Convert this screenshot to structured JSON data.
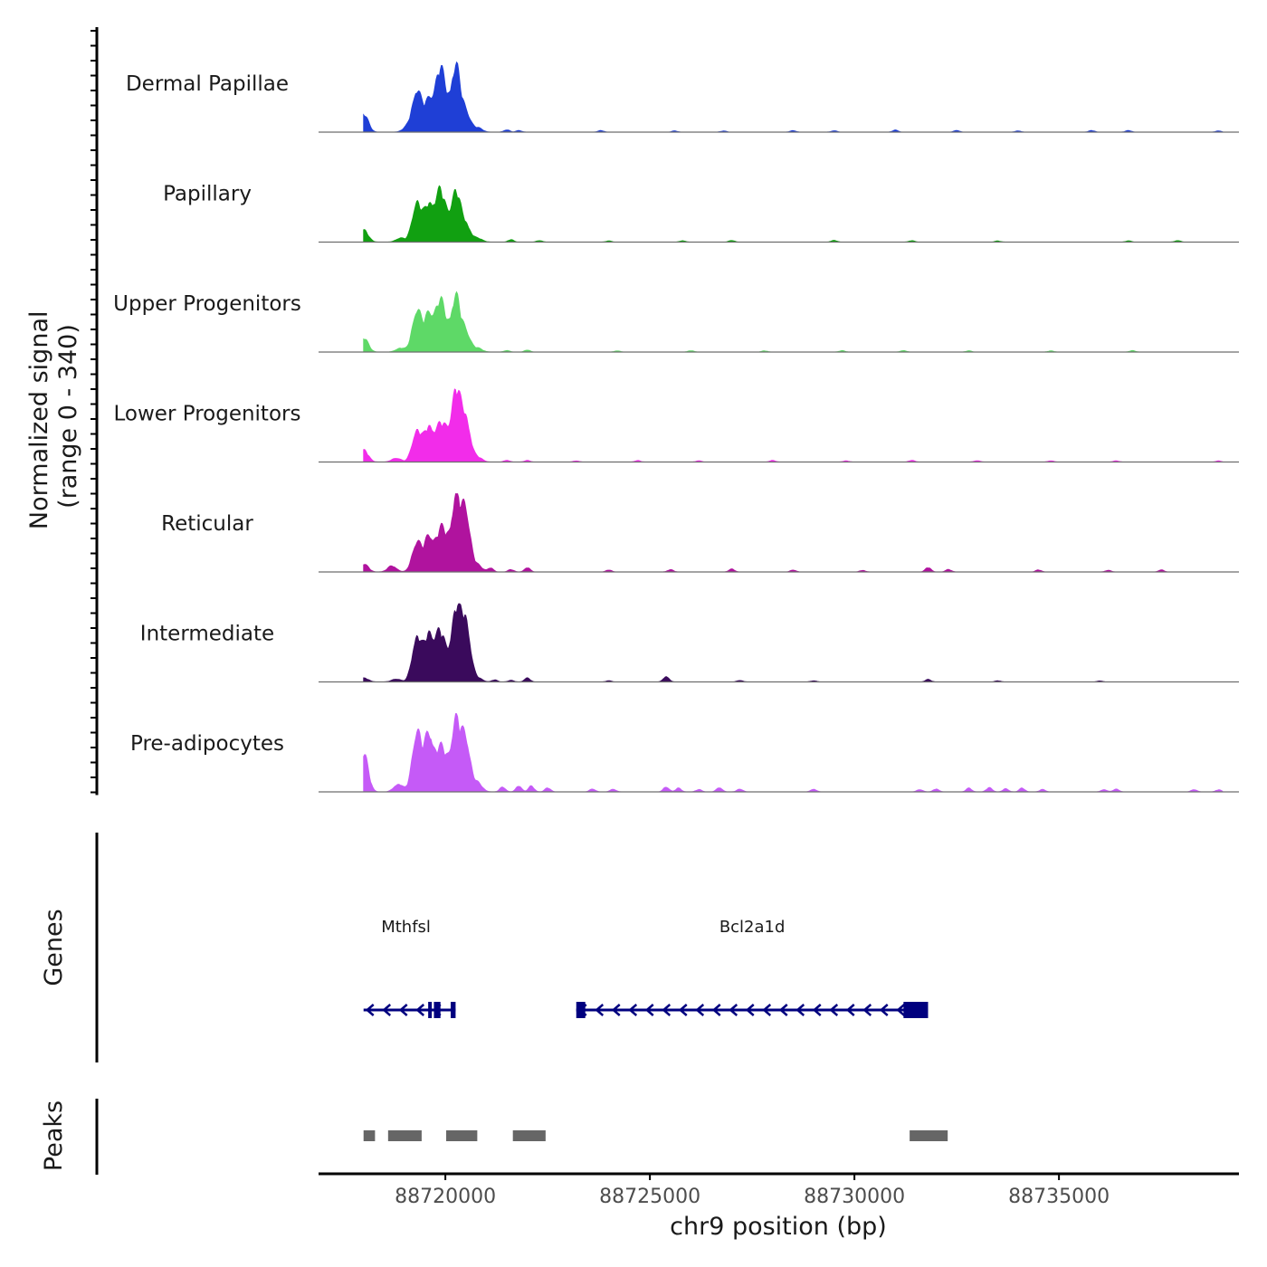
{
  "chart_data": {
    "type": "area",
    "title": "",
    "ylabel_line1": "Normalized signal",
    "ylabel_line2": "(range 0 - 340)",
    "yrange": [
      0,
      340
    ],
    "xlabel": "chr9 position (bp)",
    "xlim": [
      88716900,
      88739400
    ],
    "xticks": [
      88720000,
      88725000,
      88730000,
      88735000
    ],
    "xtick_labels": [
      "88720000",
      "88725000",
      "88730000",
      "88735000"
    ],
    "tracks": [
      {
        "name": "Dermal Papillae",
        "color": "#1f3fd6",
        "peaks": [
          [
            88718000,
            90
          ],
          [
            88719050,
            20
          ],
          [
            88719300,
            210
          ],
          [
            88719600,
            150
          ],
          [
            88719850,
            250
          ],
          [
            88720000,
            110
          ],
          [
            88720250,
            310
          ],
          [
            88720500,
            100
          ],
          [
            88720800,
            20
          ]
        ],
        "noise": [
          [
            88721500,
            12
          ],
          [
            88721800,
            8
          ],
          [
            88723800,
            8
          ],
          [
            88725600,
            6
          ],
          [
            88726800,
            6
          ],
          [
            88728500,
            8
          ],
          [
            88729500,
            7
          ],
          [
            88731000,
            10
          ],
          [
            88732500,
            9
          ],
          [
            88734000,
            6
          ],
          [
            88735800,
            8
          ],
          [
            88736700,
            8
          ],
          [
            88738900,
            6
          ]
        ]
      },
      {
        "name": "Papillary",
        "color": "#11a011",
        "peaks": [
          [
            88718000,
            60
          ],
          [
            88718900,
            20
          ],
          [
            88719300,
            200
          ],
          [
            88719600,
            180
          ],
          [
            88719850,
            200
          ],
          [
            88720000,
            90
          ],
          [
            88720250,
            240
          ],
          [
            88720500,
            90
          ],
          [
            88720800,
            18
          ]
        ],
        "noise": [
          [
            88721600,
            12
          ],
          [
            88722300,
            8
          ],
          [
            88724000,
            6
          ],
          [
            88725800,
            7
          ],
          [
            88727000,
            8
          ],
          [
            88729500,
            9
          ],
          [
            88731400,
            7
          ],
          [
            88733500,
            6
          ],
          [
            88736700,
            6
          ],
          [
            88737900,
            8
          ]
        ]
      },
      {
        "name": "Upper Progenitors",
        "color": "#5ed967",
        "peaks": [
          [
            88718000,
            70
          ],
          [
            88718900,
            20
          ],
          [
            88719300,
            210
          ],
          [
            88719600,
            180
          ],
          [
            88719850,
            200
          ],
          [
            88720000,
            90
          ],
          [
            88720250,
            260
          ],
          [
            88720500,
            100
          ],
          [
            88720800,
            18
          ]
        ],
        "noise": [
          [
            88721500,
            8
          ],
          [
            88722000,
            10
          ],
          [
            88724200,
            6
          ],
          [
            88726000,
            7
          ],
          [
            88727800,
            6
          ],
          [
            88729700,
            7
          ],
          [
            88731200,
            8
          ],
          [
            88732800,
            6
          ],
          [
            88734800,
            6
          ],
          [
            88736800,
            7
          ]
        ]
      },
      {
        "name": "Lower Progenitors",
        "color": "#f22cea",
        "peaks": [
          [
            88718000,
            60
          ],
          [
            88718800,
            20
          ],
          [
            88719300,
            160
          ],
          [
            88719600,
            170
          ],
          [
            88719850,
            130
          ],
          [
            88720000,
            100
          ],
          [
            88720250,
            340
          ],
          [
            88720500,
            220
          ],
          [
            88720800,
            22
          ]
        ],
        "noise": [
          [
            88721500,
            9
          ],
          [
            88722000,
            8
          ],
          [
            88723200,
            6
          ],
          [
            88724700,
            7
          ],
          [
            88726200,
            6
          ],
          [
            88728000,
            8
          ],
          [
            88729800,
            6
          ],
          [
            88731400,
            8
          ],
          [
            88733000,
            7
          ],
          [
            88734800,
            6
          ],
          [
            88736400,
            6
          ],
          [
            88738900,
            5
          ]
        ]
      },
      {
        "name": "Reticular",
        "color": "#b0139e",
        "peaks": [
          [
            88718000,
            40
          ],
          [
            88718700,
            30
          ],
          [
            88719300,
            150
          ],
          [
            88719600,
            170
          ],
          [
            88719850,
            140
          ],
          [
            88720000,
            120
          ],
          [
            88720250,
            340
          ],
          [
            88720500,
            300
          ],
          [
            88720800,
            30
          ]
        ],
        "noise": [
          [
            88721100,
            20
          ],
          [
            88721600,
            12
          ],
          [
            88722000,
            22
          ],
          [
            88724000,
            10
          ],
          [
            88725500,
            12
          ],
          [
            88727000,
            14
          ],
          [
            88728500,
            10
          ],
          [
            88730200,
            8
          ],
          [
            88731800,
            22
          ],
          [
            88732300,
            12
          ],
          [
            88734500,
            10
          ],
          [
            88736200,
            8
          ],
          [
            88737500,
            10
          ]
        ]
      },
      {
        "name": "Intermediate",
        "color": "#3a0a5c",
        "peaks": [
          [
            88718000,
            20
          ],
          [
            88718800,
            15
          ],
          [
            88719300,
            230
          ],
          [
            88719600,
            230
          ],
          [
            88719850,
            200
          ],
          [
            88720000,
            80
          ],
          [
            88720250,
            340
          ],
          [
            88720500,
            310
          ],
          [
            88720800,
            18
          ]
        ],
        "noise": [
          [
            88721200,
            10
          ],
          [
            88721600,
            8
          ],
          [
            88722000,
            20
          ],
          [
            88724000,
            6
          ],
          [
            88725400,
            28
          ],
          [
            88727200,
            8
          ],
          [
            88729000,
            6
          ],
          [
            88731800,
            12
          ],
          [
            88733500,
            6
          ],
          [
            88736000,
            5
          ]
        ]
      },
      {
        "name": "Pre-adipocytes",
        "color": "#c55af7",
        "peaks": [
          [
            88718000,
            190
          ],
          [
            88718850,
            40
          ],
          [
            88719300,
            300
          ],
          [
            88719600,
            280
          ],
          [
            88719850,
            150
          ],
          [
            88720000,
            110
          ],
          [
            88720250,
            330
          ],
          [
            88720500,
            260
          ],
          [
            88720800,
            40
          ]
        ],
        "noise": [
          [
            88721400,
            25
          ],
          [
            88721800,
            30
          ],
          [
            88722100,
            28
          ],
          [
            88722500,
            20
          ],
          [
            88723600,
            15
          ],
          [
            88724100,
            14
          ],
          [
            88725400,
            25
          ],
          [
            88725700,
            18
          ],
          [
            88726200,
            12
          ],
          [
            88726700,
            22
          ],
          [
            88727200,
            15
          ],
          [
            88729000,
            14
          ],
          [
            88731600,
            12
          ],
          [
            88732000,
            15
          ],
          [
            88732800,
            18
          ],
          [
            88733300,
            22
          ],
          [
            88733700,
            15
          ],
          [
            88734100,
            18
          ],
          [
            88734600,
            12
          ],
          [
            88736100,
            12
          ],
          [
            88736400,
            14
          ],
          [
            88738300,
            12
          ],
          [
            88738900,
            10
          ]
        ]
      }
    ],
    "genes_track_label": "Genes",
    "genes": [
      {
        "name": "Mthfsl",
        "start": 88718000,
        "end": 88720250,
        "strand": "-",
        "exons": [
          [
            88719580,
            88719660
          ],
          [
            88719720,
            88719880
          ],
          [
            88720130,
            88720250
          ]
        ]
      },
      {
        "name": "Bcl2a1d",
        "start": 88723200,
        "end": 88731800,
        "strand": "-",
        "exons": [
          [
            88723200,
            88723420
          ],
          [
            88731200,
            88731800
          ]
        ]
      }
    ],
    "peaks_track_label": "Peaks",
    "peak_regions": [
      [
        88718000,
        88718280
      ],
      [
        88718600,
        88719420
      ],
      [
        88720020,
        88720780
      ],
      [
        88721650,
        88722450
      ],
      [
        88731350,
        88732280
      ]
    ]
  },
  "colors": {
    "axis": "#000000",
    "baseline": "#6e6e6e",
    "gene": "#00007f",
    "peak": "#666666",
    "tick_label": "#4d4d4d"
  }
}
